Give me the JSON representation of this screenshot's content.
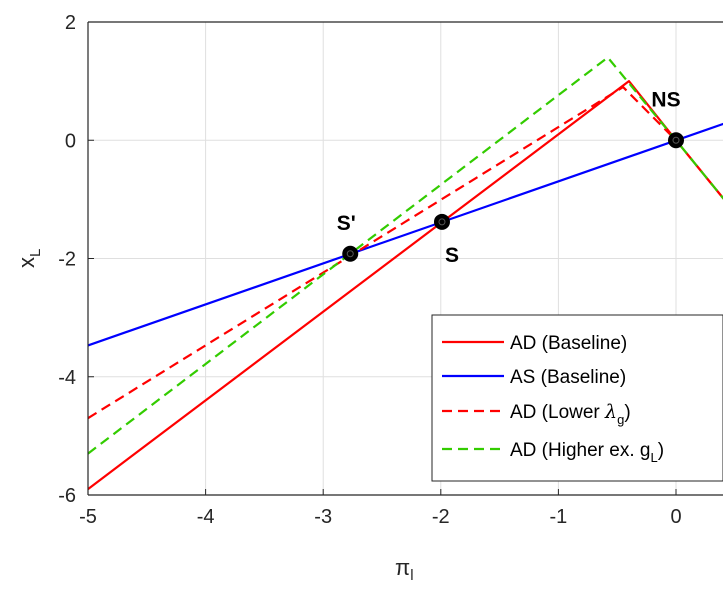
{
  "chart_data": {
    "type": "line",
    "xlabel_main": "π",
    "xlabel_sub": "l",
    "ylabel_main": "x",
    "ylabel_sub": "L",
    "xlim": [
      -5,
      0.45
    ],
    "ylim": [
      -6,
      2
    ],
    "xticks": [
      -5,
      -4,
      -3,
      -2,
      -1,
      0
    ],
    "yticks": [
      -6,
      -4,
      -2,
      0,
      2
    ],
    "grid": true,
    "series": [
      {
        "name": "AD (Baseline)",
        "color": "#ff0000",
        "dash": "solid",
        "x": [
          -5,
          -0.4,
          0,
          0.45
        ],
        "y": [
          -5.9,
          1.0,
          0,
          -1.1
        ]
      },
      {
        "name": "AS (Baseline)",
        "color": "#0000ff",
        "dash": "solid",
        "x": [
          -5,
          0.45
        ],
        "y": [
          -3.47,
          0.31
        ]
      },
      {
        "name": "AD (Lower λg)",
        "color": "#ff0000",
        "dash": "dashed",
        "x": [
          -5,
          -0.45,
          0,
          0.45
        ],
        "y": [
          -4.7,
          0.9,
          0,
          -1.1
        ]
      },
      {
        "name": "AD (Higher ex. gL)",
        "color": "#33cc00",
        "dash": "dashed",
        "x": [
          -5,
          -0.58,
          0,
          0.45
        ],
        "y": [
          -5.3,
          1.4,
          0,
          -1.1
        ]
      }
    ],
    "points": [
      {
        "label": "S'",
        "x": -2.77,
        "y": -1.92,
        "label_pos": "above-left"
      },
      {
        "label": "S",
        "x": -1.99,
        "y": -1.38,
        "label_pos": "below"
      },
      {
        "label": "NS",
        "x": 0,
        "y": 0,
        "label_pos": "above"
      }
    ],
    "legend": {
      "position": "bottom-right",
      "entries": [
        {
          "text": "AD (Baseline)",
          "color": "#ff0000",
          "dash": "solid"
        },
        {
          "text": "AS (Baseline)",
          "color": "#0000ff",
          "dash": "solid"
        },
        {
          "text": "AD (Lower ",
          "greek": "λ",
          "sub": "g",
          "tail": ")",
          "color": "#ff0000",
          "dash": "dashed"
        },
        {
          "text": "AD (Higher ex. g",
          "greek": "",
          "sub": "L",
          "tail": ")",
          "color": "#33cc00",
          "dash": "dashed"
        }
      ]
    }
  }
}
